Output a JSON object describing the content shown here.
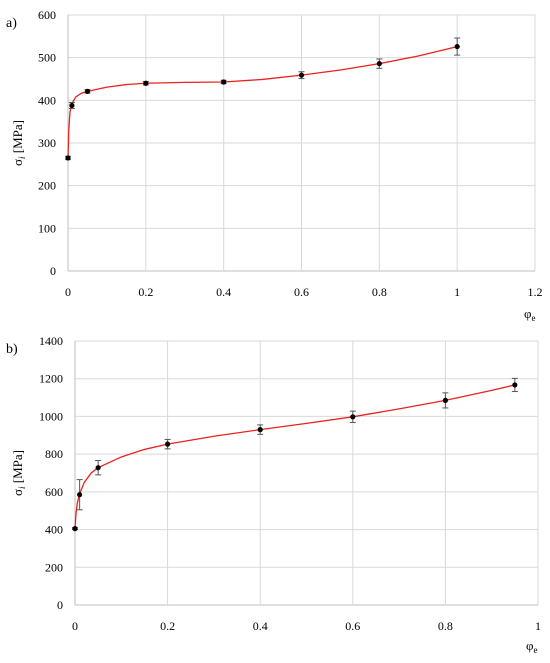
{
  "chart_data": [
    {
      "type": "scatter",
      "panel_label": "a)",
      "xlabel": "φ",
      "xlabel_sub": "e",
      "ylabel": "σ",
      "ylabel_sub": "i",
      "ylabel_unit": "[MPa]",
      "xlim": [
        0,
        1.2
      ],
      "ylim": [
        0,
        600
      ],
      "xticks": [
        0,
        0.2,
        0.4,
        0.6,
        0.8,
        1,
        1.2
      ],
      "yticks": [
        0,
        100,
        200,
        300,
        400,
        500,
        600
      ],
      "grid": true,
      "colors": {
        "fit": "#e8231f",
        "points": "#000000",
        "errorbars": "#555555"
      },
      "points": [
        {
          "x": 0,
          "y": 265,
          "err": 4
        },
        {
          "x": 0.01,
          "y": 388,
          "err": 7
        },
        {
          "x": 0.05,
          "y": 421,
          "err": 4
        },
        {
          "x": 0.2,
          "y": 440,
          "err": 4
        },
        {
          "x": 0.4,
          "y": 443,
          "err": 4
        },
        {
          "x": 0.6,
          "y": 459,
          "err": 8
        },
        {
          "x": 0.8,
          "y": 486,
          "err": 11
        },
        {
          "x": 1,
          "y": 526,
          "err": 20
        }
      ],
      "fit": [
        [
          0.0,
          265
        ],
        [
          0.002,
          330
        ],
        [
          0.005,
          372
        ],
        [
          0.01,
          392
        ],
        [
          0.02,
          408
        ],
        [
          0.035,
          417
        ],
        [
          0.05,
          421
        ],
        [
          0.1,
          431
        ],
        [
          0.15,
          437
        ],
        [
          0.2,
          440
        ],
        [
          0.3,
          442
        ],
        [
          0.4,
          443
        ],
        [
          0.5,
          449
        ],
        [
          0.6,
          459
        ],
        [
          0.7,
          471
        ],
        [
          0.8,
          486
        ],
        [
          0.9,
          504
        ],
        [
          1.0,
          526
        ]
      ]
    },
    {
      "type": "scatter",
      "panel_label": "b)",
      "xlabel": "φ",
      "xlabel_sub": "e",
      "ylabel": "σ",
      "ylabel_sub": "i",
      "ylabel_unit": "[MPa]",
      "xlim": [
        0,
        1
      ],
      "ylim": [
        0,
        1400
      ],
      "xticks": [
        0,
        0.2,
        0.4,
        0.6,
        0.8,
        1
      ],
      "yticks": [
        0,
        200,
        400,
        600,
        800,
        1000,
        1200,
        1400
      ],
      "grid": true,
      "colors": {
        "fit": "#e8231f",
        "points": "#000000",
        "errorbars": "#555555"
      },
      "points": [
        {
          "x": 0,
          "y": 405,
          "err": 5
        },
        {
          "x": 0.01,
          "y": 585,
          "err": 80
        },
        {
          "x": 0.05,
          "y": 728,
          "err": 38
        },
        {
          "x": 0.2,
          "y": 853,
          "err": 25
        },
        {
          "x": 0.4,
          "y": 930,
          "err": 25
        },
        {
          "x": 0.6,
          "y": 998,
          "err": 30
        },
        {
          "x": 0.8,
          "y": 1085,
          "err": 40
        },
        {
          "x": 0.95,
          "y": 1167,
          "err": 35
        }
      ],
      "fit": [
        [
          0.0,
          405
        ],
        [
          0.002,
          480
        ],
        [
          0.005,
          540
        ],
        [
          0.01,
          590
        ],
        [
          0.02,
          650
        ],
        [
          0.035,
          700
        ],
        [
          0.05,
          728
        ],
        [
          0.1,
          785
        ],
        [
          0.15,
          825
        ],
        [
          0.2,
          853
        ],
        [
          0.3,
          895
        ],
        [
          0.4,
          930
        ],
        [
          0.5,
          963
        ],
        [
          0.6,
          998
        ],
        [
          0.7,
          1040
        ],
        [
          0.8,
          1085
        ],
        [
          0.9,
          1138
        ],
        [
          0.95,
          1167
        ]
      ]
    }
  ]
}
